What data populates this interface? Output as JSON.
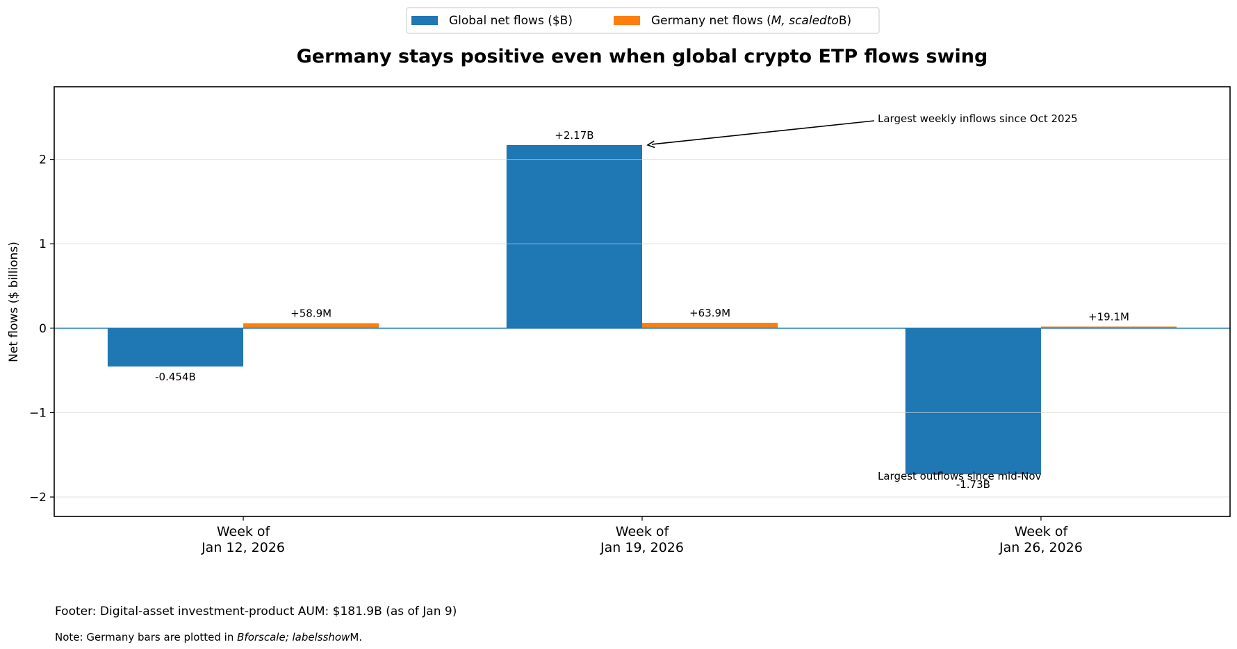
{
  "chart_data": {
    "type": "bar",
    "title": "Germany stays positive even when global crypto ETP flows swing",
    "xlabel": "",
    "ylabel": "Net flows ($ billions)",
    "ylim": [
      -2.23,
      2.86
    ],
    "yticks": [
      -2,
      -1,
      0,
      1,
      2
    ],
    "ytick_labels": [
      "−2",
      "−1",
      "0",
      "1",
      "2"
    ],
    "grid": "horizontal",
    "legend_position": "top-center",
    "categories": [
      [
        "Week of",
        "Jan 12, 2026"
      ],
      [
        "Week of",
        "Jan 19, 2026"
      ],
      [
        "Week of",
        "Jan 26, 2026"
      ]
    ],
    "series": [
      {
        "name": "Global net flows ($B)",
        "color": "#1f77b4",
        "values": [
          -0.454,
          2.17,
          -1.73
        ],
        "labels": [
          "-0.454B",
          "+2.17B",
          "-1.73B"
        ]
      },
      {
        "name_parts": [
          {
            "text": "Germany net flows (",
            "italic": false
          },
          {
            "text": "M, scaledto",
            "italic": true
          },
          {
            "text": "B)",
            "italic": false
          }
        ],
        "name": "Germany net flows (M, scaledto B)",
        "color": "#ff7f0e",
        "values": [
          0.0589,
          0.0639,
          0.0191
        ],
        "labels": [
          "+58.9M",
          "+63.9M",
          "+19.1M"
        ]
      }
    ],
    "zero_line_color": "#1f77b4",
    "annotations": [
      {
        "text": "Largest weekly inflows since Oct 2025",
        "target_category": 1,
        "target_value": 2.17,
        "arrow": true
      },
      {
        "text": "Largest outflows since mid-Nov",
        "target_category": 2,
        "target_value": -1.73,
        "arrow": false
      }
    ]
  },
  "footer": {
    "aum_text": "Footer: Digital-asset investment-product AUM: $181.9B (as of Jan 9)",
    "note_parts": [
      {
        "text": "Note: Germany bars are plotted in ",
        "italic": false
      },
      {
        "text": "Bforscale; labelsshow",
        "italic": true
      },
      {
        "text": "M.",
        "italic": false
      }
    ]
  }
}
